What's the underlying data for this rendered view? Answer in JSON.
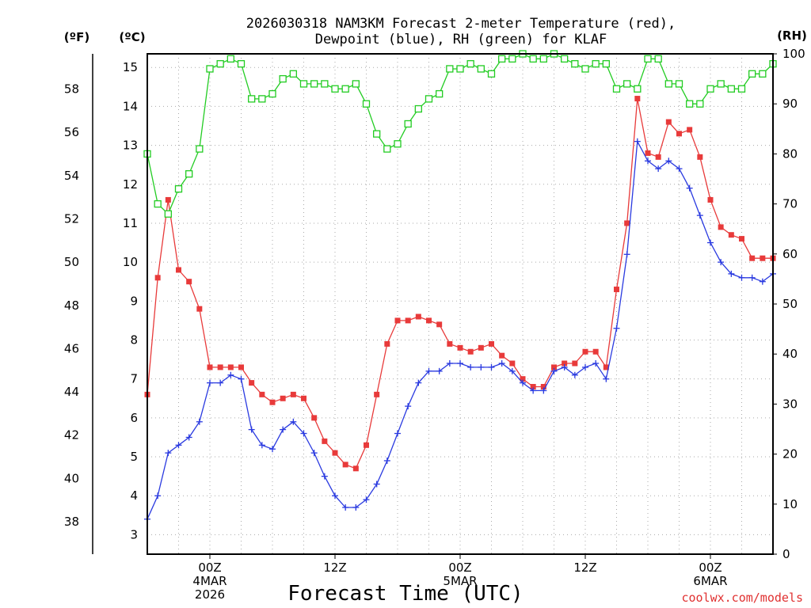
{
  "title": {
    "line1": "2026030318 NAM3KM Forecast 2-meter Temperature (red),",
    "line2": "Dewpoint (blue), RH (green) for KLAF"
  },
  "xlabel": "Forecast Time (UTC)",
  "credit": "coolwx.com/models",
  "units": {
    "fahrenheit": "(ºF)",
    "celsius": "(ºC)",
    "rh": "(RH)"
  },
  "colors": {
    "temperature": "#e83a3a",
    "dewpoint": "#2a3ae0",
    "rh": "#22cc22",
    "grid": "#aaaaaa"
  },
  "chart_data": {
    "type": "line",
    "x_units": "hours after 2026-03-03 18Z (hourly steps)",
    "xlim": [
      0,
      60
    ],
    "y_left_celsius": {
      "lim": [
        2.5,
        15.35
      ],
      "ticks": [
        3,
        4,
        5,
        6,
        7,
        8,
        9,
        10,
        11,
        12,
        13,
        14,
        15
      ]
    },
    "y_left_fahrenheit": {
      "ticks": [
        38,
        40,
        42,
        44,
        46,
        48,
        50,
        52,
        54,
        56,
        58
      ]
    },
    "y_right_rh": {
      "lim": [
        0,
        100
      ],
      "ticks": [
        0,
        10,
        20,
        30,
        40,
        50,
        60,
        70,
        80,
        90,
        100
      ]
    },
    "x_ticks": [
      {
        "hour": 6,
        "lines": [
          "00Z",
          "4MAR",
          "2026"
        ]
      },
      {
        "hour": 18,
        "lines": [
          "12Z"
        ]
      },
      {
        "hour": 30,
        "lines": [
          "00Z",
          "5MAR"
        ]
      },
      {
        "hour": 42,
        "lines": [
          "12Z"
        ]
      },
      {
        "hour": 54,
        "lines": [
          "00Z",
          "6MAR"
        ]
      }
    ],
    "grid": true,
    "series": [
      {
        "key": "temperature",
        "axis": "celsius",
        "values": [
          6.6,
          9.6,
          11.6,
          9.8,
          9.5,
          8.8,
          7.3,
          7.3,
          7.3,
          7.3,
          6.9,
          6.6,
          6.4,
          6.5,
          6.6,
          6.5,
          6.0,
          5.4,
          5.1,
          4.8,
          4.7,
          5.3,
          6.6,
          7.9,
          8.5,
          8.5,
          8.6,
          8.5,
          8.4,
          7.9,
          7.8,
          7.7,
          7.8,
          7.9,
          7.6,
          7.4,
          7.0,
          6.8,
          6.8,
          7.3,
          7.4,
          7.4,
          7.7,
          7.7,
          7.3,
          9.3,
          11.0,
          14.2,
          12.8,
          12.7,
          13.6,
          13.3,
          13.4,
          12.7,
          11.6,
          10.9,
          10.7,
          10.6,
          10.1,
          10.1,
          10.1
        ]
      },
      {
        "key": "dewpoint",
        "axis": "celsius",
        "values": [
          3.4,
          4.0,
          5.1,
          5.3,
          5.5,
          5.9,
          6.9,
          6.9,
          7.1,
          7.0,
          5.7,
          5.3,
          5.2,
          5.7,
          5.9,
          5.6,
          5.1,
          4.5,
          4.0,
          3.7,
          3.7,
          3.9,
          4.3,
          4.9,
          5.6,
          6.3,
          6.9,
          7.2,
          7.2,
          7.4,
          7.4,
          7.3,
          7.3,
          7.3,
          7.4,
          7.2,
          6.9,
          6.7,
          6.7,
          7.2,
          7.3,
          7.1,
          7.3,
          7.4,
          7.0,
          8.3,
          10.2,
          13.1,
          12.6,
          12.4,
          12.6,
          12.4,
          11.9,
          11.2,
          10.5,
          10.0,
          9.7,
          9.6,
          9.6,
          9.5,
          9.7
        ]
      },
      {
        "key": "rh",
        "axis": "rh",
        "values": [
          80,
          70,
          68,
          73,
          76,
          81,
          97,
          98,
          99,
          98,
          91,
          91,
          92,
          95,
          96,
          94,
          94,
          94,
          93,
          93,
          94,
          90,
          84,
          81,
          82,
          86,
          89,
          91,
          92,
          97,
          97,
          98,
          97,
          96,
          99,
          99,
          100,
          99,
          99,
          100,
          99,
          98,
          97,
          98,
          98,
          93,
          94,
          93,
          99,
          99,
          94,
          94,
          90,
          90,
          93,
          94,
          93,
          93,
          96,
          96,
          98
        ]
      }
    ]
  }
}
